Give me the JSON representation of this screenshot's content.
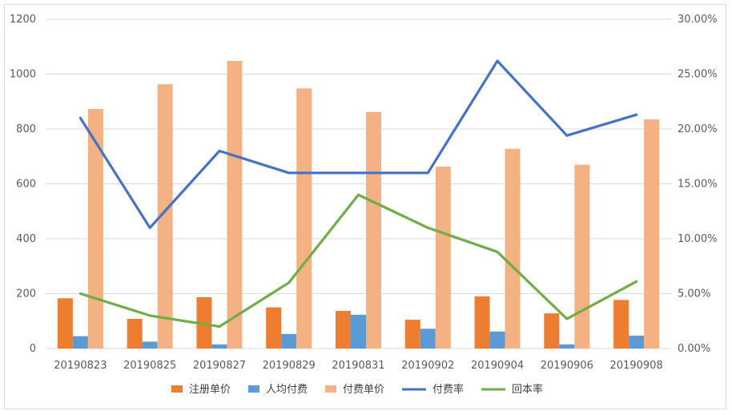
{
  "chart_data": {
    "type": "bar",
    "categories": [
      "20190823",
      "20190825",
      "20190827",
      "20190829",
      "20190831",
      "20190902",
      "20190904",
      "20190906",
      "20190908"
    ],
    "series": [
      {
        "name": "注册单价",
        "kind": "bar",
        "axis": "left",
        "color": "#ED7D31",
        "values": [
          183,
          108,
          187,
          150,
          137,
          105,
          190,
          128,
          177
        ]
      },
      {
        "name": "人均付费",
        "kind": "bar",
        "axis": "left",
        "color": "#5B9BD5",
        "values": [
          45,
          25,
          15,
          53,
          123,
          72,
          62,
          15,
          47
        ]
      },
      {
        "name": "付费单价",
        "kind": "bar",
        "axis": "left",
        "color": "#F4B183",
        "values": [
          873,
          963,
          1048,
          948,
          862,
          663,
          728,
          670,
          835
        ]
      },
      {
        "name": "付费率",
        "kind": "line",
        "axis": "right",
        "color": "#4472C4",
        "values": [
          21.0,
          11.0,
          18.0,
          16.0,
          16.0,
          16.0,
          26.2,
          19.4,
          21.3
        ]
      },
      {
        "name": "回本率",
        "kind": "line",
        "axis": "right",
        "color": "#70AD47",
        "values": [
          5.0,
          3.0,
          2.0,
          6.0,
          14.0,
          11.0,
          8.8,
          2.7,
          6.1
        ]
      }
    ],
    "y_left": {
      "range": [
        0,
        1200
      ],
      "ticks": [
        "0",
        "200",
        "400",
        "600",
        "800",
        "1000",
        "1200"
      ]
    },
    "y_right": {
      "range": [
        0,
        30
      ],
      "ticks": [
        "0.00%",
        "5.00%",
        "10.00%",
        "15.00%",
        "20.00%",
        "25.00%",
        "30.00%"
      ]
    },
    "grid": true,
    "legend": "bottom"
  }
}
